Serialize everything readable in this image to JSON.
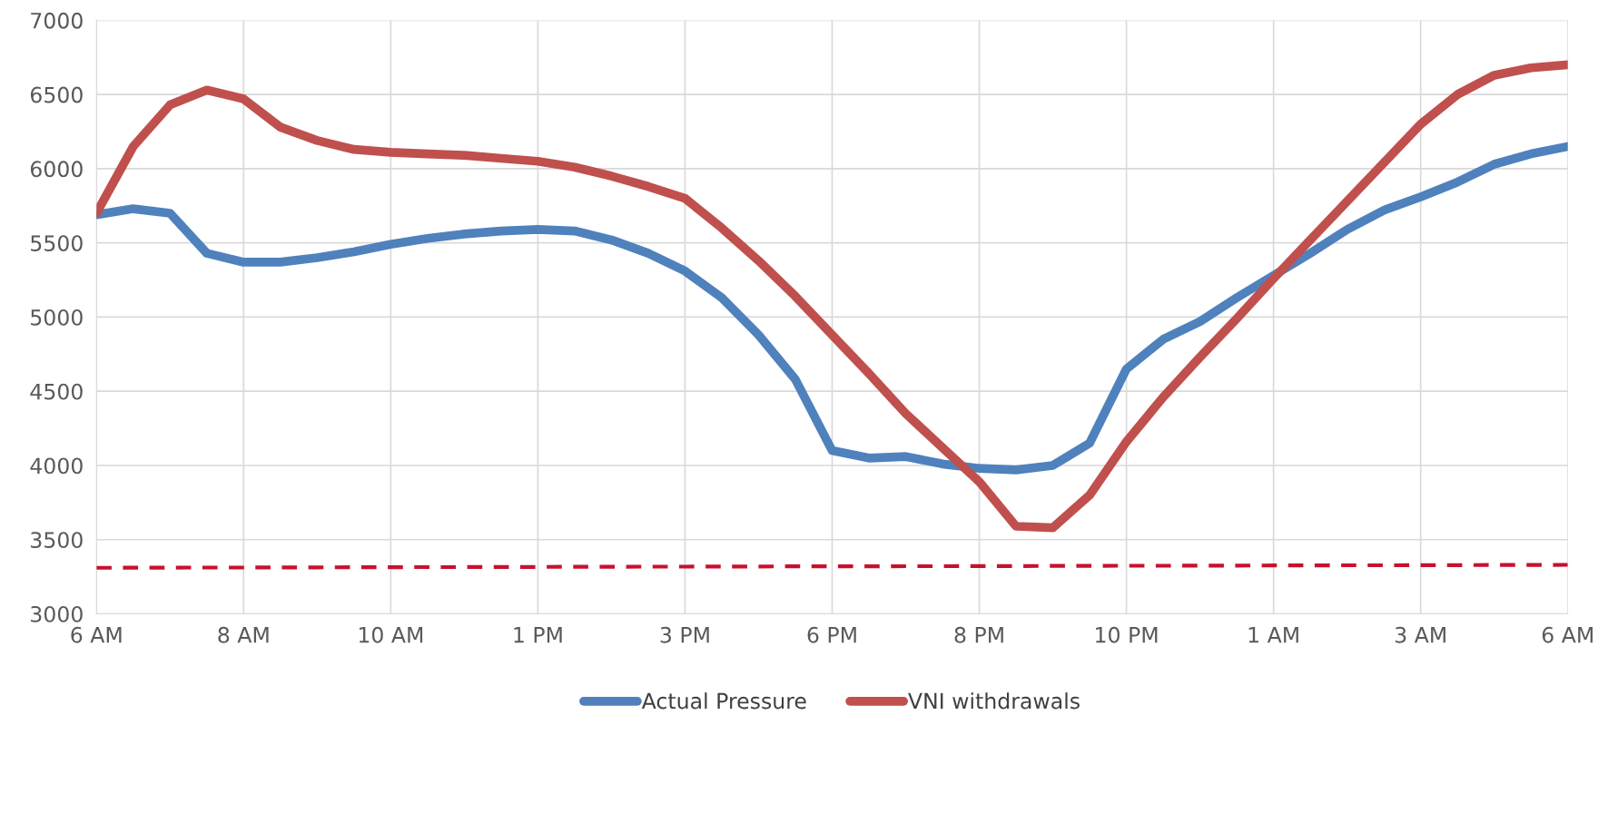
{
  "chart_data": {
    "type": "line",
    "categories": [
      "6 AM",
      null,
      null,
      null,
      "8 AM",
      null,
      null,
      null,
      "10 AM",
      null,
      null,
      null,
      "1 PM",
      null,
      null,
      null,
      "3 PM",
      null,
      null,
      null,
      "6 PM",
      null,
      null,
      null,
      "8 PM",
      null,
      null,
      null,
      "10 PM",
      null,
      null,
      null,
      "1 AM",
      null,
      null,
      null,
      "3 AM",
      null,
      null,
      null,
      "6 AM"
    ],
    "series": [
      {
        "name": "Actual Pressure",
        "color": "#4f81bd",
        "values": [
          5690,
          5730,
          5700,
          5430,
          5370,
          5370,
          5400,
          5440,
          5490,
          5530,
          5560,
          5580,
          5590,
          5580,
          5520,
          5430,
          5310,
          5130,
          4880,
          4580,
          4100,
          4050,
          4060,
          4010,
          3980,
          3970,
          4000,
          4150,
          4650,
          4850,
          4970,
          5130,
          5280,
          5430,
          5590,
          5720,
          5810,
          5910,
          6030,
          6100,
          6150
        ]
      },
      {
        "name": "VNI withdrawals",
        "color": "#c0504d",
        "values": [
          5700,
          6150,
          6430,
          6530,
          6470,
          6280,
          6190,
          6130,
          6110,
          6100,
          6090,
          6070,
          6050,
          6010,
          5950,
          5880,
          5800,
          5600,
          5380,
          5140,
          4880,
          4620,
          4350,
          4120,
          3890,
          3590,
          3580,
          3800,
          4160,
          4460,
          4730,
          4990,
          5260,
          5520,
          5780,
          6040,
          6300,
          6500,
          6630,
          6680,
          6700
        ]
      },
      {
        "color": "#c8102e",
        "line_style": "dashed",
        "values": [
          3310,
          3311,
          3311,
          3312,
          3312,
          3313,
          3313,
          3314,
          3314,
          3315,
          3315,
          3316,
          3316,
          3317,
          3317,
          3318,
          3318,
          3319,
          3319,
          3320,
          3320,
          3320,
          3321,
          3321,
          3322,
          3322,
          3323,
          3323,
          3324,
          3324,
          3325,
          3325,
          3326,
          3326,
          3327,
          3327,
          3328,
          3328,
          3329,
          3329,
          3330
        ]
      }
    ],
    "ylim": [
      3000,
      7000
    ],
    "yticks": [
      3000,
      3500,
      4000,
      4500,
      5000,
      5500,
      6000,
      6500,
      7000
    ],
    "grid": true,
    "legend": "bottom",
    "marker": "none",
    "line_style": "solid"
  }
}
